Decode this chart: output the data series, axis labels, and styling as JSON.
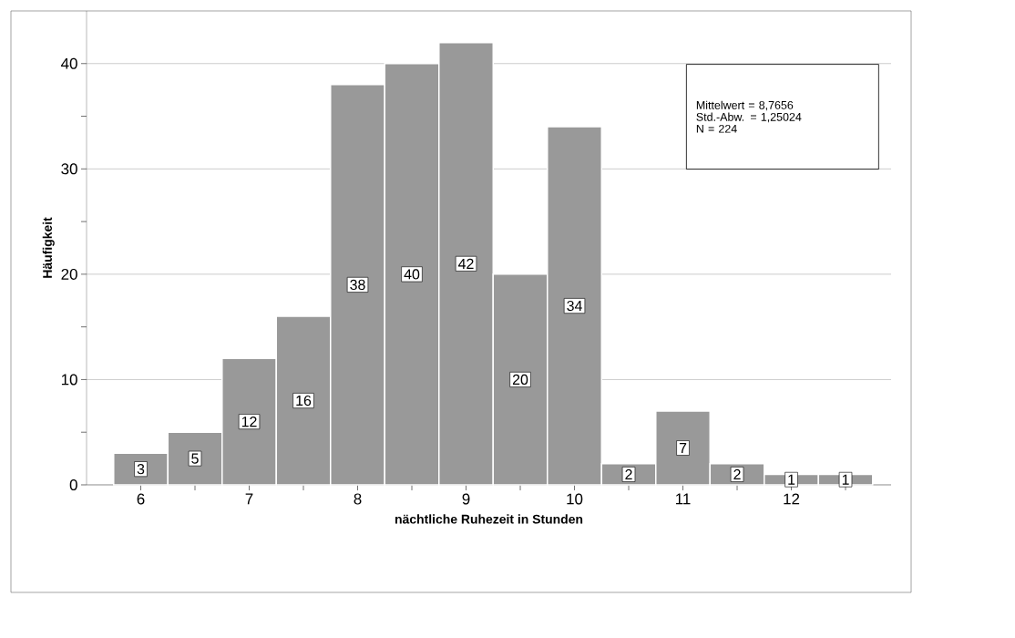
{
  "chart_data": {
    "type": "histogram",
    "xlabel": "nächtliche Ruhezeit in Stunden",
    "ylabel": "Häufigkeit",
    "bins": [
      5.75,
      6.25,
      6.75,
      7.25,
      7.75,
      8.25,
      8.75,
      9.25,
      9.75,
      10.25,
      10.75,
      11.25,
      11.75,
      12.25,
      12.75
    ],
    "values": [
      3,
      5,
      12,
      16,
      38,
      40,
      42,
      20,
      34,
      2,
      7,
      2,
      1,
      1
    ],
    "color": "#999999",
    "data_labels": true,
    "grid": "y",
    "xlim": [
      5.5,
      12.92
    ],
    "ylim": [
      0,
      45
    ],
    "xticks": [
      6,
      {
        "value": 6.5,
        "label": null
      },
      7,
      {
        "value": 7.5,
        "label": null
      },
      8,
      {
        "value": 8.5,
        "label": null
      },
      9,
      {
        "value": 9.5,
        "label": null
      },
      10,
      {
        "value": 10.5,
        "label": null
      },
      11,
      {
        "value": 11.5,
        "label": null
      },
      12,
      {
        "value": 12.5,
        "label": null
      }
    ],
    "yticks": [
      0,
      {
        "value": 5,
        "label": null
      },
      10,
      {
        "value": 15,
        "label": null
      },
      20,
      {
        "value": 25,
        "label": null
      },
      30,
      {
        "value": 35,
        "label": null
      },
      40
    ],
    "annotations": [
      "Mittelwert = 8,7656",
      "Std.-Abw. = 1,25024",
      "N = 224"
    ]
  }
}
